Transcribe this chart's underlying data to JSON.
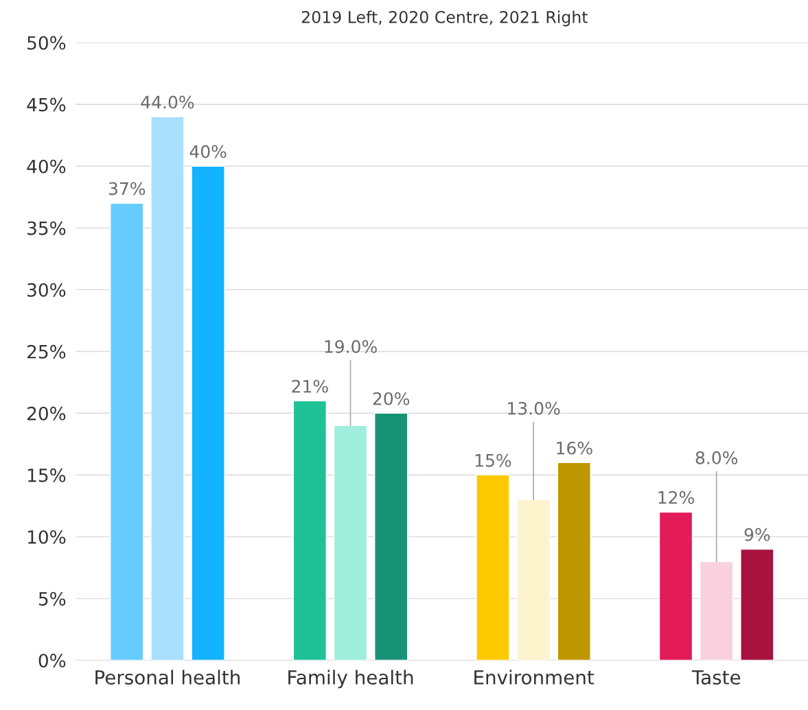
{
  "chart_data": {
    "type": "bar",
    "title": "2019 Left, 2020 Centre, 2021 Right",
    "categories": [
      "Personal health",
      "Family health",
      "Environment",
      "Taste"
    ],
    "series": [
      {
        "colors": [
          "#66ccff",
          "#1fc297",
          "#fbc900",
          "#e31b58"
        ],
        "values": [
          37,
          21,
          15,
          12
        ],
        "value_labels": [
          "37%",
          "21%",
          "15%",
          "12%"
        ]
      },
      {
        "colors": [
          "#a8e0fd",
          "#9eeedb",
          "#fdf3cc",
          "#f9d1de"
        ],
        "values": [
          44,
          19,
          13,
          8
        ],
        "value_labels": [
          "44.0%",
          "19.0%",
          "13.0%",
          "8.0%"
        ]
      },
      {
        "colors": [
          "#13b3ff",
          "#189274",
          "#be9700",
          "#a8123f"
        ],
        "values": [
          40,
          20,
          16,
          9
        ],
        "value_labels": [
          "40%",
          "20%",
          "16%",
          "9%"
        ]
      }
    ],
    "ylim": [
      0,
      50
    ],
    "yticks": [
      {
        "value": 0,
        "label": "0%"
      },
      {
        "value": 5,
        "label": "5%"
      },
      {
        "value": 10,
        "label": "10%"
      },
      {
        "value": 15,
        "label": "15%"
      },
      {
        "value": 20,
        "label": "20%"
      },
      {
        "value": 25,
        "label": "25%"
      },
      {
        "value": 30,
        "label": "30%"
      },
      {
        "value": 35,
        "label": "35%"
      },
      {
        "value": 40,
        "label": "40%"
      },
      {
        "value": 45,
        "label": "45%"
      },
      {
        "value": 50,
        "label": "50%"
      }
    ],
    "grid": "y",
    "legend": false
  }
}
